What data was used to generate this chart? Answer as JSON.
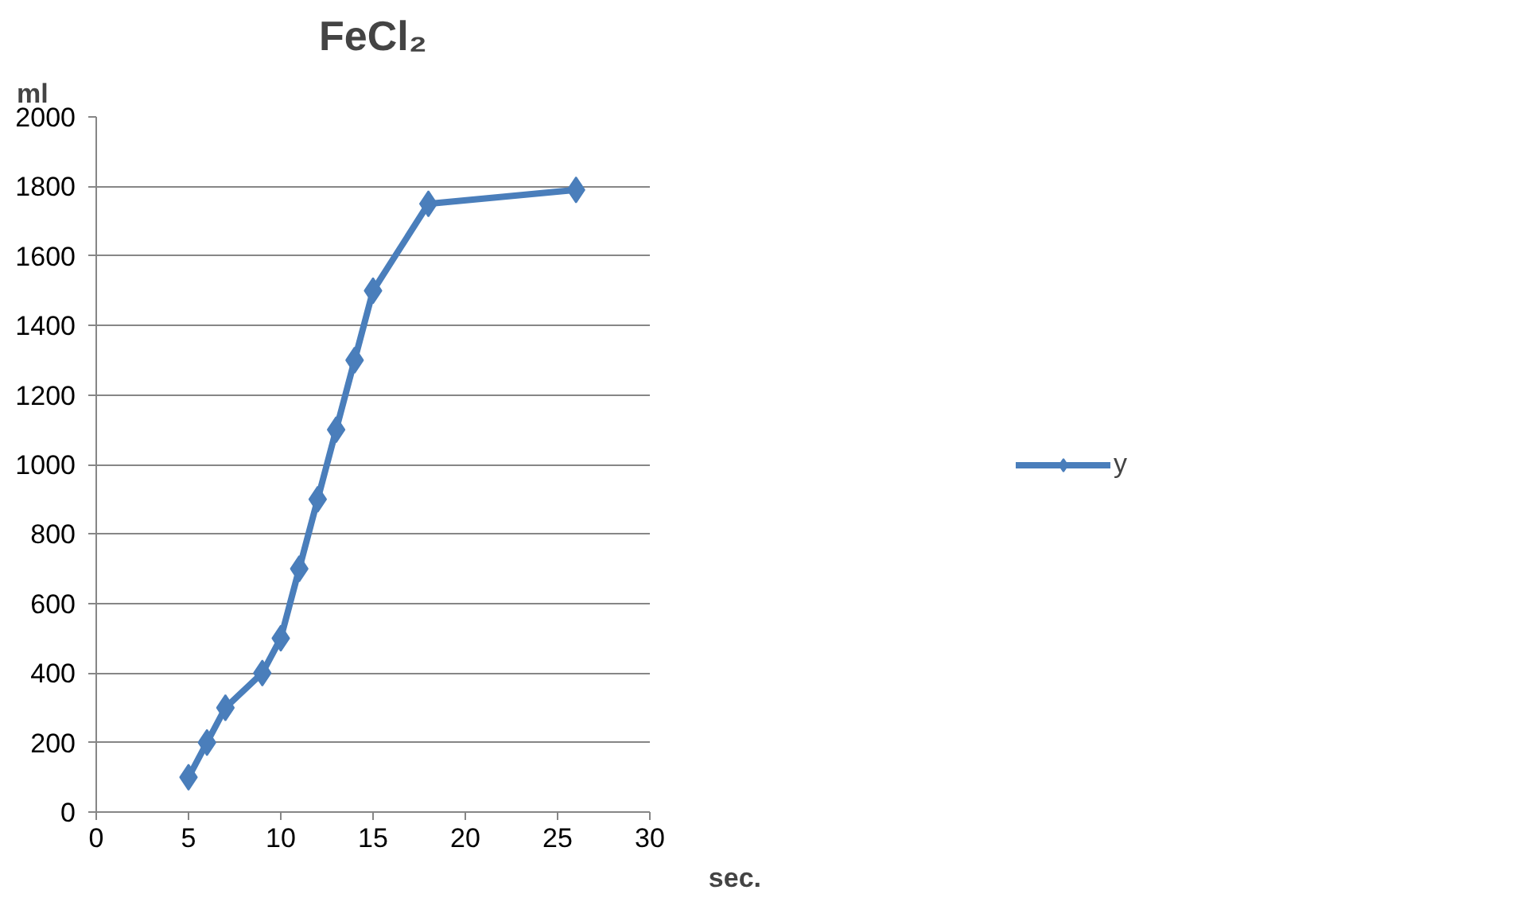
{
  "chart_data": {
    "type": "line",
    "title": "FeCl₂",
    "xlabel": "sec.",
    "ylabel": "ml",
    "x": [
      5,
      6,
      7,
      9,
      10,
      11,
      12,
      13,
      14,
      15,
      18,
      26
    ],
    "series": [
      {
        "name": "y",
        "color": "#4a7ebb",
        "values": [
          100,
          200,
          300,
          400,
          500,
          700,
          900,
          1100,
          1300,
          1500,
          1750,
          1790
        ]
      }
    ],
    "xlim": [
      0,
      30
    ],
    "xticks": [
      0,
      5,
      10,
      15,
      20,
      25,
      30
    ],
    "ylim": [
      0,
      2000
    ],
    "yticks": [
      0,
      200,
      400,
      600,
      800,
      1000,
      1200,
      1400,
      1600,
      1800,
      2000
    ],
    "grid": "y",
    "legend": "right",
    "marker": "diamond",
    "line_style": "solid"
  }
}
